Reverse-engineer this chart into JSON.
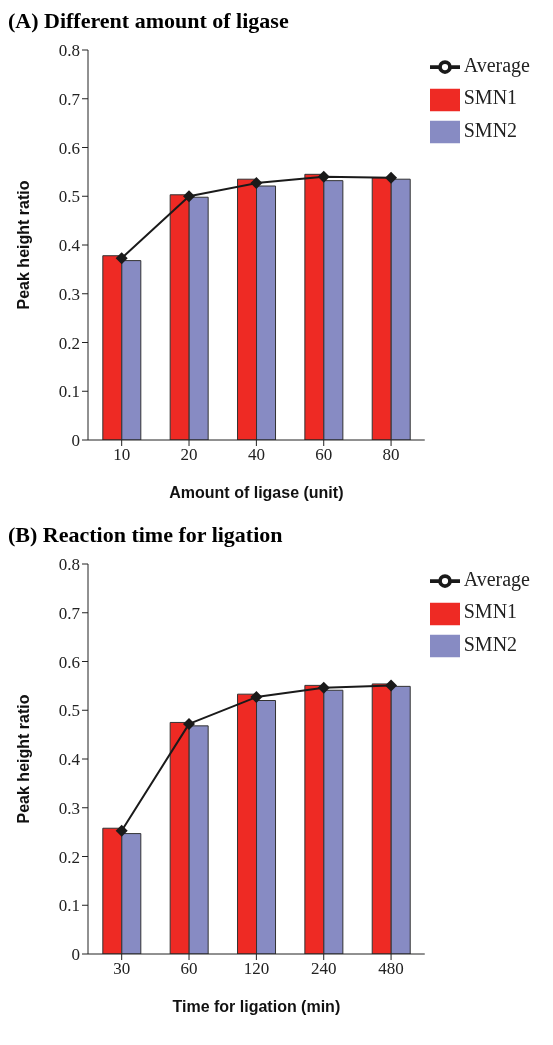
{
  "chart_data": [
    {
      "type": "bar",
      "title": "(A) Different amount of ligase",
      "xlabel": "Amount of ligase (unit)",
      "ylabel": "Peak height ratio",
      "categories": [
        "10",
        "20",
        "40",
        "60",
        "80"
      ],
      "series": [
        {
          "name": "SMN1",
          "color": "#ee2a24",
          "values": [
            0.378,
            0.503,
            0.535,
            0.545,
            0.538
          ]
        },
        {
          "name": "SMN2",
          "color": "#878bc3",
          "values": [
            0.368,
            0.498,
            0.521,
            0.532,
            0.535
          ]
        },
        {
          "name": "Average",
          "type": "line",
          "color": "#1a1a1a",
          "values": [
            0.373,
            0.5,
            0.527,
            0.54,
            0.538
          ]
        }
      ],
      "ylim": [
        0,
        0.8
      ],
      "yticks": [
        0,
        0.1,
        0.2,
        0.3,
        0.4,
        0.5,
        0.6,
        0.7,
        0.8
      ],
      "grid": false,
      "legend": "top right",
      "marker": "diamond",
      "line_style": "solid"
    },
    {
      "type": "bar",
      "title": "(B) Reaction time for ligation",
      "xlabel": "Time for ligation (min)",
      "ylabel": "Peak height ratio",
      "categories": [
        "30",
        "60",
        "120",
        "240",
        "480"
      ],
      "series": [
        {
          "name": "SMN1",
          "color": "#ee2a24",
          "values": [
            0.258,
            0.475,
            0.533,
            0.551,
            0.554
          ]
        },
        {
          "name": "SMN2",
          "color": "#878bc3",
          "values": [
            0.247,
            0.468,
            0.52,
            0.541,
            0.549
          ]
        },
        {
          "name": "Average",
          "type": "line",
          "color": "#1a1a1a",
          "values": [
            0.253,
            0.472,
            0.527,
            0.546,
            0.551
          ]
        }
      ],
      "ylim": [
        0,
        0.8
      ],
      "yticks": [
        0,
        0.1,
        0.2,
        0.3,
        0.4,
        0.5,
        0.6,
        0.7,
        0.8
      ],
      "grid": false,
      "legend": "top right",
      "marker": "diamond",
      "line_style": "solid"
    }
  ]
}
